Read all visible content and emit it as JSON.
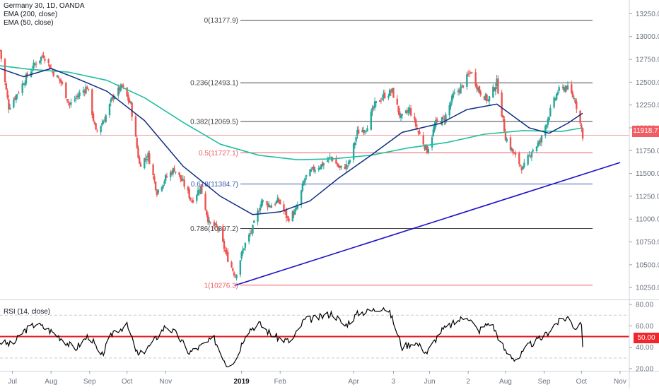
{
  "header": {
    "symbol_line": "Germany 30, 1D, OANDA",
    "ema200_label": "EMA (200, close)",
    "ema50_label": "EMA (50, close)"
  },
  "rsi_header": "RSI (14, close)",
  "current_price_label": "11918.7",
  "rsi_level_label": "50.00",
  "colors": {
    "up_candle": "#26a69a",
    "down_candle": "#ef5350",
    "ema200": "#1fbf9f",
    "ema50": "#0d2f86",
    "trendline": "#1a12c9",
    "rsi_line": "#000000",
    "rsi_level": "#e5171e",
    "price_line": "#f5a0a3",
    "fib_black": "#444444",
    "fib_red": "#f05d62",
    "fib_blue": "#3c5ab0"
  },
  "chart_data": [
    {
      "type": "candlestick",
      "title": "Germany 30, 1D, OANDA",
      "x_axis_ticks": [
        "Jul",
        "Aug",
        "Sep",
        "Oct",
        "Nov",
        "2019",
        "Feb",
        "Apr",
        "3",
        "Jun",
        "2",
        "Aug",
        "Sep",
        "Oct",
        "Nov"
      ],
      "y_axis_ticks": [
        "13250.0",
        "13000.0",
        "12750.0",
        "12500.0",
        "12250.0",
        "12000.0",
        "11750.0",
        "11500.0",
        "11250.0",
        "11000.0",
        "10750.0",
        "10500.0",
        "10250.0"
      ],
      "ylim": [
        10120,
        13400
      ],
      "last_price": 11918.7,
      "fibonacci_levels": [
        {
          "label": "0(13177.9)",
          "value": 13177.9,
          "color": "#444444"
        },
        {
          "label": "0.236(12493.1)",
          "value": 12493.1,
          "color": "#444444"
        },
        {
          "label": "0.382(12069.5)",
          "value": 12069.5,
          "color": "#444444"
        },
        {
          "label": "0.5(11727.1)",
          "value": 11727.1,
          "color": "#f05d62"
        },
        {
          "label": "0.618(11384.7)",
          "value": 11384.7,
          "color": "#3c5ab0"
        },
        {
          "label": "0.786(10897.2)",
          "value": 10897.2,
          "color": "#444444"
        },
        {
          "label": "1(10276.3)",
          "value": 10276.3,
          "color": "#f05d62"
        }
      ],
      "trendline": {
        "from": {
          "date": "2018-12-27",
          "price": 10276
        },
        "to": {
          "date": "2019-11-01",
          "price": 11620
        }
      },
      "close_path": [
        [
          "2018-06-21",
          12850
        ],
        [
          "2018-06-28",
          12230
        ],
        [
          "2018-07-05",
          12380
        ],
        [
          "2018-07-12",
          12550
        ],
        [
          "2018-07-19",
          12700
        ],
        [
          "2018-07-26",
          12800
        ],
        [
          "2018-08-02",
          12620
        ],
        [
          "2018-08-09",
          12500
        ],
        [
          "2018-08-16",
          12250
        ],
        [
          "2018-08-23",
          12360
        ],
        [
          "2018-08-30",
          12450
        ],
        [
          "2018-09-06",
          11950
        ],
        [
          "2018-09-13",
          12100
        ],
        [
          "2018-09-20",
          12350
        ],
        [
          "2018-09-27",
          12450
        ],
        [
          "2018-10-04",
          12250
        ],
        [
          "2018-10-11",
          11600
        ],
        [
          "2018-10-18",
          11700
        ],
        [
          "2018-10-25",
          11300
        ],
        [
          "2018-11-01",
          11450
        ],
        [
          "2018-11-08",
          11550
        ],
        [
          "2018-11-15",
          11400
        ],
        [
          "2018-11-22",
          11200
        ],
        [
          "2018-11-29",
          11350
        ],
        [
          "2018-12-06",
          10950
        ],
        [
          "2018-12-13",
          10900
        ],
        [
          "2018-12-20",
          10600
        ],
        [
          "2018-12-27",
          10380
        ],
        [
          "2019-01-03",
          10700
        ],
        [
          "2019-01-10",
          10900
        ],
        [
          "2019-01-17",
          11200
        ],
        [
          "2019-01-24",
          11150
        ],
        [
          "2019-01-31",
          11200
        ],
        [
          "2019-02-07",
          11000
        ],
        [
          "2019-02-14",
          11100
        ],
        [
          "2019-02-21",
          11450
        ],
        [
          "2019-02-28",
          11550
        ],
        [
          "2019-03-07",
          11600
        ],
        [
          "2019-03-14",
          11680
        ],
        [
          "2019-03-21",
          11550
        ],
        [
          "2019-03-28",
          11600
        ],
        [
          "2019-04-04",
          11950
        ],
        [
          "2019-04-11",
          12000
        ],
        [
          "2019-04-18",
          12250
        ],
        [
          "2019-04-25",
          12350
        ],
        [
          "2019-05-02",
          12400
        ],
        [
          "2019-05-09",
          12100
        ],
        [
          "2019-05-16",
          12200
        ],
        [
          "2019-05-23",
          11950
        ],
        [
          "2019-05-30",
          11750
        ],
        [
          "2019-06-06",
          12050
        ],
        [
          "2019-06-13",
          12100
        ],
        [
          "2019-06-20",
          12350
        ],
        [
          "2019-06-27",
          12450
        ],
        [
          "2019-07-04",
          12620
        ],
        [
          "2019-07-11",
          12400
        ],
        [
          "2019-07-18",
          12300
        ],
        [
          "2019-07-25",
          12500
        ],
        [
          "2019-08-01",
          11900
        ],
        [
          "2019-08-08",
          11700
        ],
        [
          "2019-08-15",
          11550
        ],
        [
          "2019-08-22",
          11750
        ],
        [
          "2019-08-29",
          11850
        ],
        [
          "2019-09-05",
          12150
        ],
        [
          "2019-09-12",
          12400
        ],
        [
          "2019-09-19",
          12450
        ],
        [
          "2019-09-26",
          12300
        ],
        [
          "2019-10-02",
          11918.7
        ]
      ],
      "ema200_path": [
        [
          "2018-06-21",
          12680
        ],
        [
          "2018-07-15",
          12640
        ],
        [
          "2018-08-15",
          12610
        ],
        [
          "2018-09-15",
          12520
        ],
        [
          "2018-10-15",
          12330
        ],
        [
          "2018-11-15",
          12060
        ],
        [
          "2018-12-15",
          11820
        ],
        [
          "2019-01-15",
          11700
        ],
        [
          "2019-02-15",
          11650
        ],
        [
          "2019-03-15",
          11660
        ],
        [
          "2019-04-15",
          11700
        ],
        [
          "2019-05-15",
          11780
        ],
        [
          "2019-06-15",
          11840
        ],
        [
          "2019-07-15",
          11930
        ],
        [
          "2019-08-15",
          11970
        ],
        [
          "2019-09-15",
          11960
        ],
        [
          "2019-10-02",
          12000
        ]
      ],
      "ema50_path": [
        [
          "2018-06-21",
          12650
        ],
        [
          "2018-07-10",
          12560
        ],
        [
          "2018-08-01",
          12650
        ],
        [
          "2018-08-20",
          12550
        ],
        [
          "2018-09-15",
          12400
        ],
        [
          "2018-10-15",
          12080
        ],
        [
          "2018-11-15",
          11580
        ],
        [
          "2018-12-15",
          11250
        ],
        [
          "2019-01-10",
          11050
        ],
        [
          "2019-02-01",
          11080
        ],
        [
          "2019-02-25",
          11200
        ],
        [
          "2019-03-20",
          11450
        ],
        [
          "2019-04-15",
          11700
        ],
        [
          "2019-05-10",
          11950
        ],
        [
          "2019-06-10",
          12050
        ],
        [
          "2019-07-01",
          12200
        ],
        [
          "2019-07-25",
          12260
        ],
        [
          "2019-08-20",
          12000
        ],
        [
          "2019-09-05",
          11940
        ],
        [
          "2019-09-20",
          12050
        ],
        [
          "2019-10-02",
          12160
        ]
      ]
    },
    {
      "type": "line",
      "title": "RSI (14, close)",
      "y_axis_ticks": [
        "80.00",
        "60.00",
        "50.00",
        "40.00",
        "20.00"
      ],
      "ylim": [
        18,
        84
      ],
      "level": 50,
      "upper_band": 70,
      "lower_band": 30,
      "rsi_path": [
        [
          "2018-06-21",
          45
        ],
        [
          "2018-07-01",
          42
        ],
        [
          "2018-07-10",
          55
        ],
        [
          "2018-07-20",
          62
        ],
        [
          "2018-08-01",
          55
        ],
        [
          "2018-08-10",
          48
        ],
        [
          "2018-08-20",
          38
        ],
        [
          "2018-09-01",
          52
        ],
        [
          "2018-09-10",
          30
        ],
        [
          "2018-09-20",
          55
        ],
        [
          "2018-10-01",
          60
        ],
        [
          "2018-10-10",
          32
        ],
        [
          "2018-10-20",
          42
        ],
        [
          "2018-11-01",
          60
        ],
        [
          "2018-11-10",
          52
        ],
        [
          "2018-11-20",
          35
        ],
        [
          "2018-12-01",
          42
        ],
        [
          "2018-12-10",
          48
        ],
        [
          "2018-12-20",
          24
        ],
        [
          "2018-12-27",
          28
        ],
        [
          "2019-01-05",
          55
        ],
        [
          "2019-01-15",
          62
        ],
        [
          "2019-01-25",
          52
        ],
        [
          "2019-02-01",
          48
        ],
        [
          "2019-02-10",
          45
        ],
        [
          "2019-02-20",
          65
        ],
        [
          "2019-03-05",
          68
        ],
        [
          "2019-03-15",
          72
        ],
        [
          "2019-03-25",
          60
        ],
        [
          "2019-04-05",
          72
        ],
        [
          "2019-04-15",
          74
        ],
        [
          "2019-04-25",
          78
        ],
        [
          "2019-05-01",
          70
        ],
        [
          "2019-05-10",
          40
        ],
        [
          "2019-05-20",
          45
        ],
        [
          "2019-05-30",
          35
        ],
        [
          "2019-06-10",
          55
        ],
        [
          "2019-06-20",
          62
        ],
        [
          "2019-07-01",
          70
        ],
        [
          "2019-07-10",
          55
        ],
        [
          "2019-07-20",
          64
        ],
        [
          "2019-08-01",
          36
        ],
        [
          "2019-08-10",
          28
        ],
        [
          "2019-08-20",
          42
        ],
        [
          "2019-09-01",
          50
        ],
        [
          "2019-09-10",
          62
        ],
        [
          "2019-09-20",
          68
        ],
        [
          "2019-09-26",
          58
        ],
        [
          "2019-10-01",
          64
        ],
        [
          "2019-10-02",
          37
        ]
      ]
    }
  ]
}
